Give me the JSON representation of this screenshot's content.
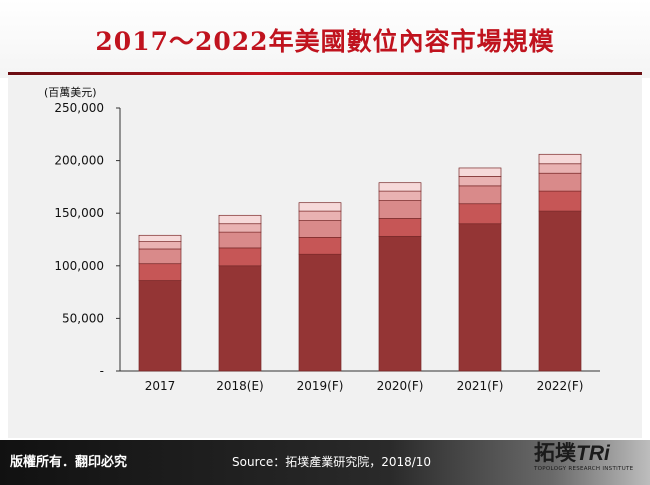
{
  "title": "2017～2022年美國數位內容市場規模",
  "footer": {
    "copyright": "版權所有．翻印必究",
    "source": "Source：拓墣產業研究院，2018/10"
  },
  "logo": {
    "main": "拓墣",
    "tri": "TRi",
    "sub": "TOPOLOGY RESEARCH INSTITUTE"
  },
  "colors": {
    "accent": "#c0131e",
    "stack": [
      "#943535",
      "#c65656",
      "#d98a8a",
      "#e9b2b2",
      "#f6d9d9"
    ]
  },
  "chart_data": {
    "type": "bar",
    "stacked": true,
    "ylabel": "(百萬美元)",
    "ylim": [
      0,
      250000
    ],
    "yticks": [
      "-",
      "50,000",
      "100,000",
      "150,000",
      "200,000",
      "250,000"
    ],
    "grid": false,
    "legend": "none",
    "categories": [
      "2017",
      "2018(E)",
      "2019(F)",
      "2020(F)",
      "2021(F)",
      "2022(F)"
    ],
    "series": [
      {
        "values": [
          86000,
          100000,
          111000,
          128000,
          140000,
          152000
        ]
      },
      {
        "values": [
          16000,
          17000,
          16000,
          17000,
          19000,
          19000
        ]
      },
      {
        "values": [
          14000,
          15000,
          16000,
          17000,
          17000,
          17000
        ]
      },
      {
        "values": [
          7000,
          8000,
          9000,
          9000,
          9000,
          9000
        ]
      },
      {
        "values": [
          6000,
          8000,
          8000,
          8000,
          8000,
          9000
        ]
      }
    ]
  }
}
